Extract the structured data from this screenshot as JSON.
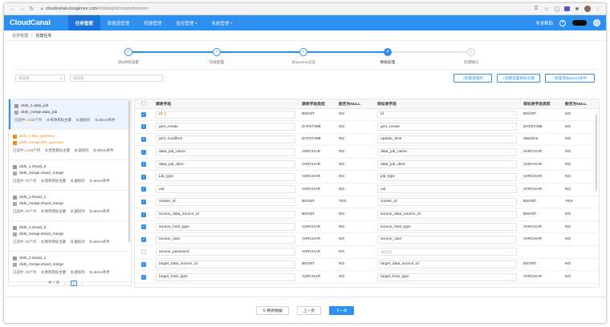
{
  "browser": {
    "url_host": "cloudcanal.clougence.com",
    "url_path": "/#/data/job/create/process"
  },
  "app": {
    "logo": "CloudCanal",
    "menu": [
      {
        "label": "任务管理",
        "active": true
      },
      {
        "label": "数据源管理",
        "active": false
      },
      {
        "label": "机器管理",
        "active": false
      },
      {
        "label": "监控管理",
        "active": false,
        "dropdown": true
      },
      {
        "label": "系统管理",
        "active": false,
        "dropdown": true
      }
    ],
    "help": "寻求帮助",
    "help_icon": "?",
    "brand_color": "#2d8ff0"
  },
  "breadcrumb": [
    "任务管理",
    "创建任务"
  ],
  "steps": [
    {
      "label": "源&目标设置",
      "state": "done",
      "mark": "✓"
    },
    {
      "label": "功能配置",
      "state": "done",
      "mark": "✓"
    },
    {
      "label": "表&action过滤",
      "state": "done",
      "mark": "✓"
    },
    {
      "label": "数据处理",
      "state": "current",
      "mark": "4"
    },
    {
      "label": "创建确认",
      "state": "todo",
      "mark": "5"
    }
  ],
  "filters": {
    "select_placeholder": "请选择",
    "search_placeholder": "请选择"
  },
  "toolbar": {
    "batch_clean": "+批量清理列",
    "batch_target_pk": "+批量设置目标主键",
    "batch_where": "+批量添加where条件"
  },
  "tables": [
    {
      "source": "drds_1.data_job",
      "target": "drds_merge.data_job",
      "selected_prefix": "已选中 ",
      "selected_count": "33",
      "selected_suffix": "/34个列",
      "warn": false,
      "active": true
    },
    {
      "source": "drds_1.kbs_question",
      "target": "drds_merge.kbs_question",
      "selected_prefix": "已选中 ",
      "selected_count": "41",
      "selected_suffix": "/41个列",
      "warn": true,
      "active": false
    },
    {
      "source": "drds_1.shard_0",
      "target": "drds_merge.shard_merge",
      "selected_prefix": "已选中 ",
      "selected_count": "4",
      "selected_suffix": "/5个列",
      "warn": false,
      "active": false
    },
    {
      "source": "drds_1.shard_1",
      "target": "drds_merge.shard_merge",
      "selected_prefix": "已选中 ",
      "selected_count": "4",
      "selected_suffix": "/5个列",
      "warn": false,
      "active": false
    },
    {
      "source": "drds_2.shard_0",
      "target": "drds_merge.shard_merge",
      "selected_prefix": "已选中 ",
      "selected_count": "4",
      "selected_suffix": "/5个列",
      "warn": false,
      "active": false
    },
    {
      "source": "drds_2.shard_1",
      "target": "drds_merge.shard_merge",
      "selected_prefix": "已选中 ",
      "selected_count": "4",
      "selected_suffix": "/5个列",
      "warn": false,
      "active": false
    }
  ],
  "table_actions": {
    "edit_pk": "修改目标主键",
    "virtual_col": "虚拟列",
    "where": "where条件"
  },
  "pager": {
    "total": "共 7 条",
    "prev": "‹",
    "page": "1",
    "next": "›"
  },
  "columns_header": [
    "源表字段",
    "源表字段类型",
    "能否为NULL",
    "目标表字段",
    "目标表字段类型",
    "能否为NULL"
  ],
  "columns": [
    {
      "src": "id",
      "key": true,
      "stype": "BIGINT",
      "snull": "NO",
      "tgt": "id",
      "ttype": "BIGINT",
      "tnull": "NO",
      "checked": true
    },
    {
      "src": "gmt_create",
      "stype": "DATETIME",
      "snull": "NO",
      "tgt": "gmt_create",
      "ttype": "DATETIME",
      "tnull": "NO",
      "checked": true
    },
    {
      "src": "gmt_modified",
      "stype": "DATETIME",
      "snull": "NO",
      "tgt": "update_time",
      "ttype": "datetime",
      "tnull": "NO",
      "checked": true
    },
    {
      "src": "data_job_name",
      "stype": "VARCHAR",
      "snull": "NO",
      "tgt": "data_job_name",
      "ttype": "VARCHAR",
      "tnull": "NO",
      "checked": true
    },
    {
      "src": "data_job_desc",
      "stype": "VARCHAR",
      "snull": "NO",
      "tgt": "data_job_desc",
      "ttype": "VARCHAR",
      "tnull": "NO",
      "checked": true
    },
    {
      "src": "job_type",
      "stype": "VARCHAR",
      "snull": "NO",
      "tgt": "job_type",
      "ttype": "VARCHAR",
      "tnull": "NO",
      "checked": true
    },
    {
      "src": "uid",
      "stype": "VARCHAR",
      "snull": "NO",
      "tgt": "uid",
      "ttype": "VARCHAR",
      "tnull": "NO",
      "checked": true
    },
    {
      "src": "cluster_id",
      "stype": "BIGINT",
      "snull": "YES",
      "tgt": "cluster_id",
      "ttype": "BIGINT",
      "tnull": "YES",
      "checked": true
    },
    {
      "src": "source_data_source_id",
      "stype": "BIGINT",
      "snull": "NO",
      "tgt": "source_data_source_id",
      "ttype": "BIGINT",
      "tnull": "NO",
      "checked": true
    },
    {
      "src": "source_host_type",
      "stype": "VARCHAR",
      "snull": "NO",
      "tgt": "source_host_type",
      "ttype": "VARCHAR",
      "tnull": "NO",
      "checked": true
    },
    {
      "src": "source_user",
      "stype": "VARCHAR",
      "snull": "NO",
      "tgt": "source_user",
      "ttype": "VARCHAR",
      "tnull": "NO",
      "checked": true
    },
    {
      "src": "source_password",
      "stype": "VARCHAR",
      "snull": "NO",
      "tgt": "请选择",
      "tgt_placeholder": true,
      "ttype": "",
      "tnull": "",
      "checked": false
    },
    {
      "src": "target_data_source_id",
      "stype": "BIGINT",
      "snull": "NO",
      "tgt": "target_data_source_id",
      "ttype": "BIGINT",
      "tnull": "NO",
      "checked": true
    },
    {
      "src": "target_host_type",
      "stype": "VARCHAR",
      "snull": "NO",
      "tgt": "target_host_type",
      "ttype": "VARCHAR",
      "tnull": "NO",
      "checked": true
    }
  ],
  "footer": {
    "refresh": "↻ 刷新数据",
    "prev": "上一步",
    "next": "下一步"
  }
}
